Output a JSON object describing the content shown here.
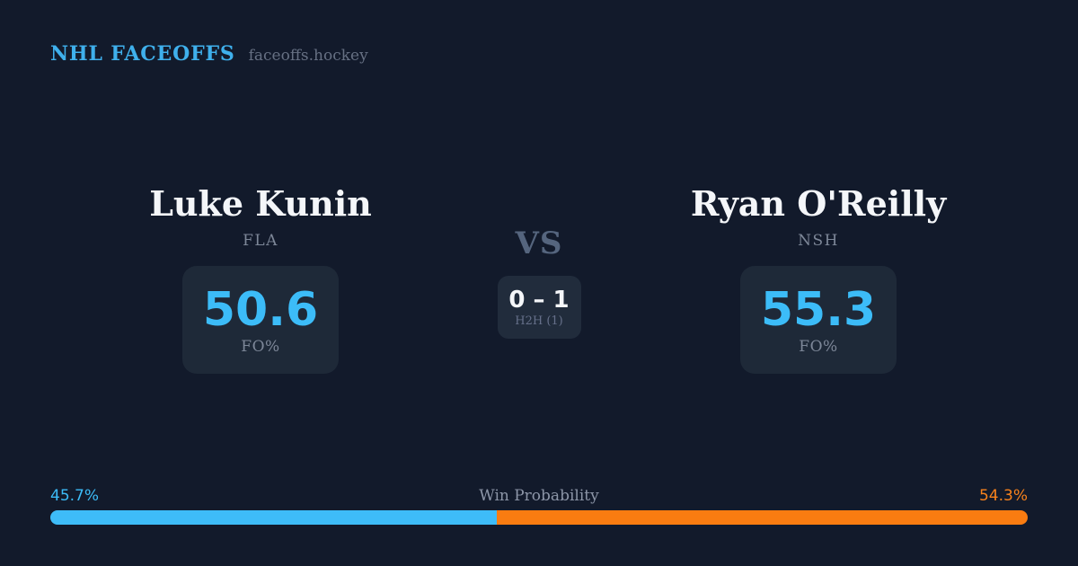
{
  "brand": {
    "title": "NHL FACEOFFS",
    "domain": "faceoffs.hockey"
  },
  "players": {
    "left": {
      "name": "Luke Kunin",
      "team": "FLA",
      "stat_value": "50.6",
      "stat_label": "FO%"
    },
    "right": {
      "name": "Ryan O'Reilly",
      "team": "NSH",
      "stat_value": "55.3",
      "stat_label": "FO%"
    }
  },
  "versus": {
    "label": "VS",
    "score": "0 – 1",
    "sub_label": "H2H (1)"
  },
  "win_probability": {
    "label": "Win Probability",
    "left_pct_text": "45.7%",
    "right_pct_text": "54.3%",
    "left_value": 45.7,
    "right_value": 54.3
  },
  "colors": {
    "background": "#121a2b",
    "card_background": "#1e2938",
    "h2h_card_background": "#212c3c",
    "accent_blue": "#3cbcf8",
    "accent_orange": "#f8821c",
    "bar_blue": "#3ebcf8",
    "bar_orange": "#f97c11",
    "brand_blue": "#3fb0ec",
    "text_white": "#f4f6f9",
    "text_muted": "#7d8798"
  }
}
